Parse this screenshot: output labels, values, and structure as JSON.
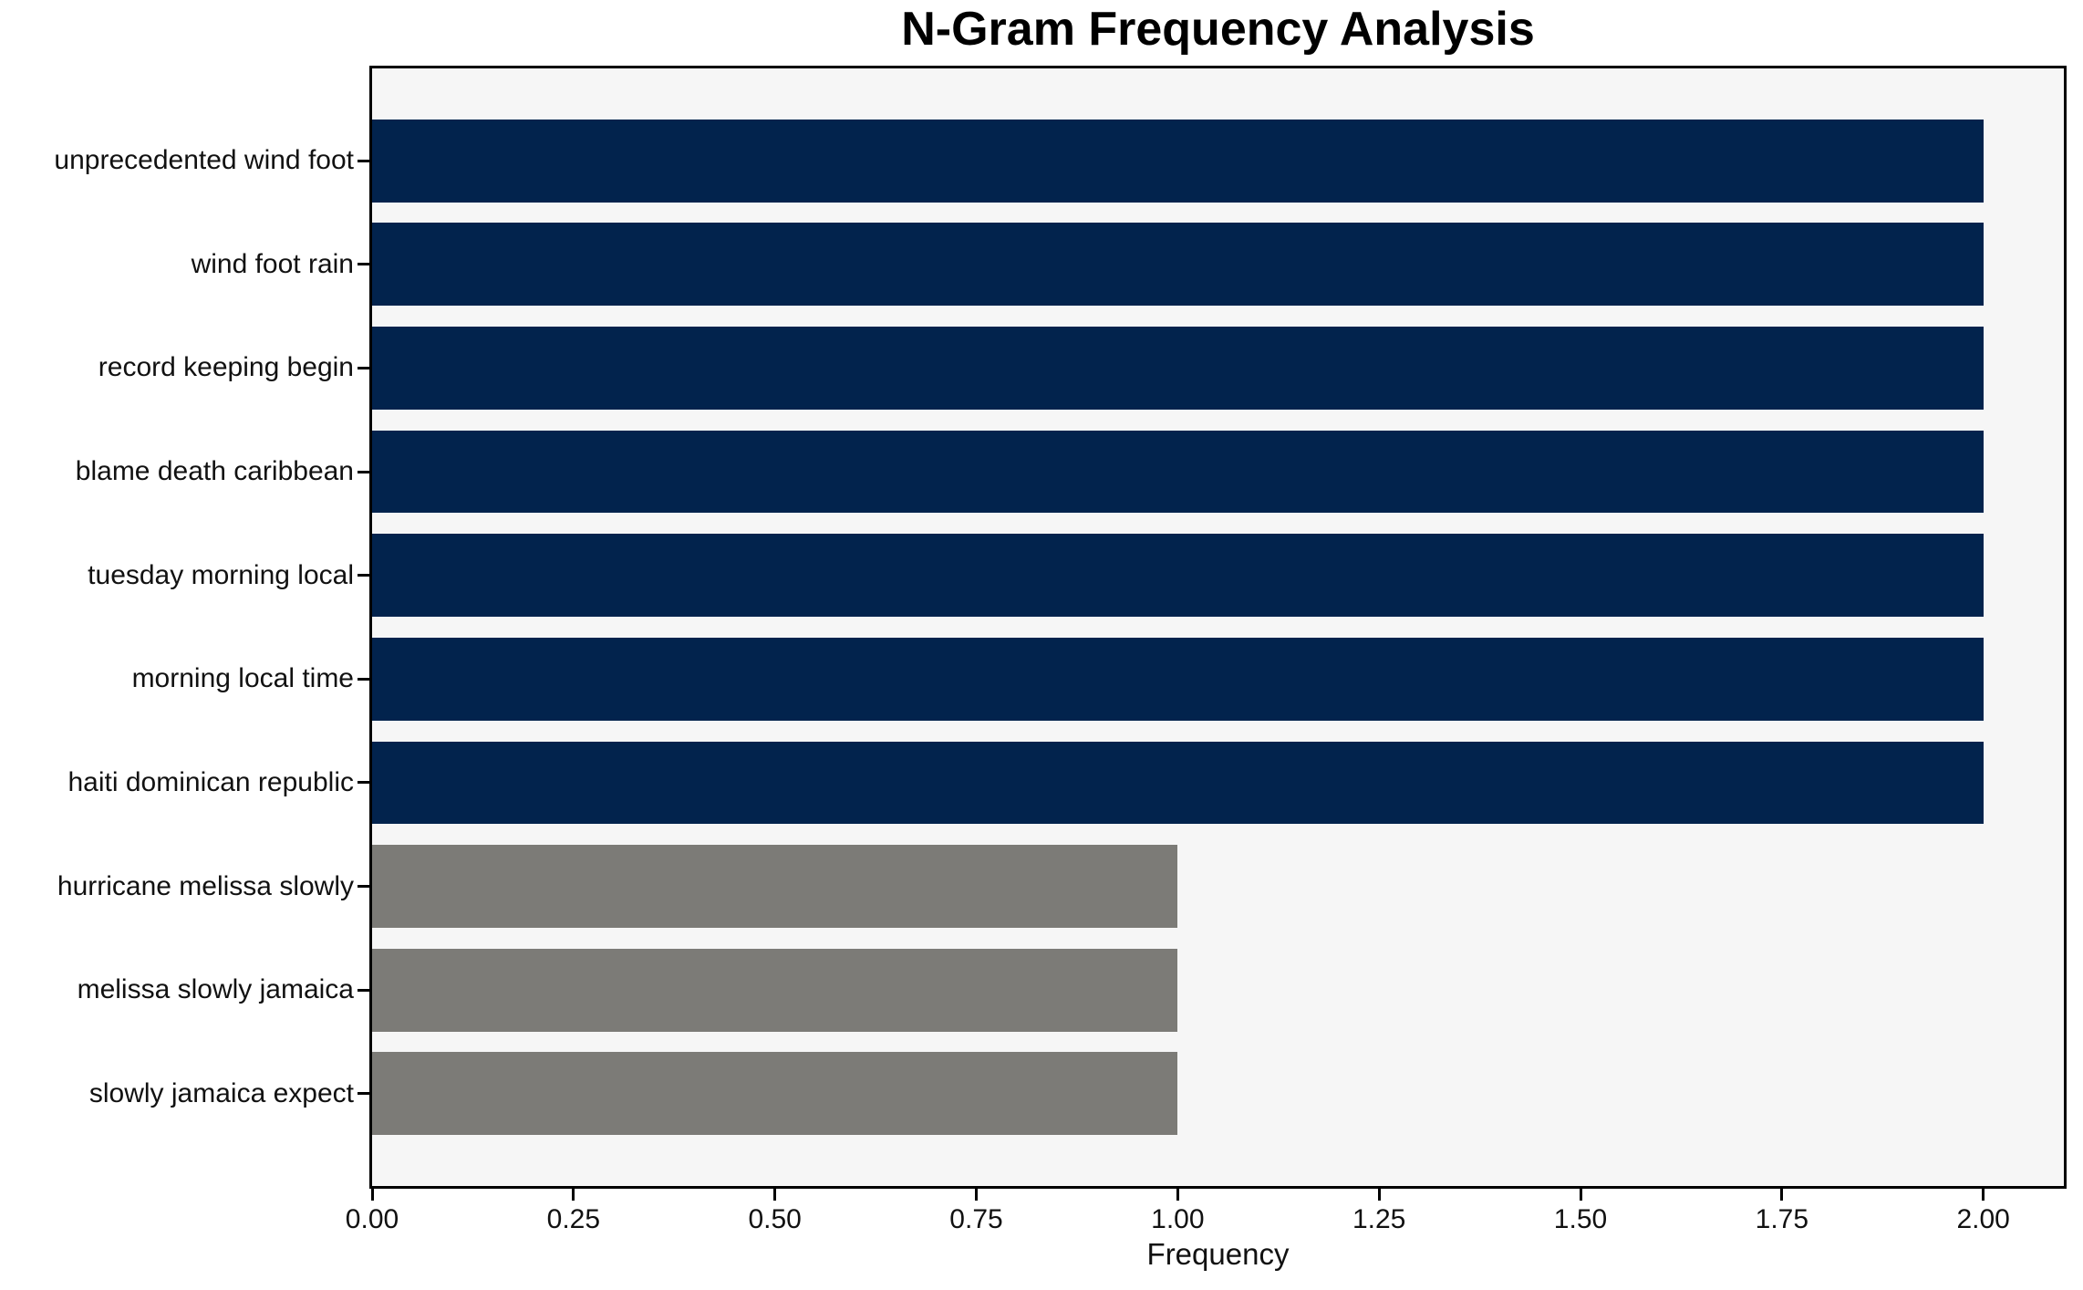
{
  "chart_data": {
    "type": "bar",
    "orientation": "horizontal",
    "title": "N-Gram Frequency Analysis",
    "xlabel": "Frequency",
    "ylabel": "",
    "categories": [
      "unprecedented wind foot",
      "wind foot rain",
      "record keeping begin",
      "blame death caribbean",
      "tuesday morning local",
      "morning local time",
      "haiti dominican republic",
      "hurricane melissa slowly",
      "melissa slowly jamaica",
      "slowly jamaica expect"
    ],
    "values": [
      2,
      2,
      2,
      2,
      2,
      2,
      2,
      1,
      1,
      1
    ],
    "bar_colors": [
      "#02234d",
      "#02234d",
      "#02234d",
      "#02234d",
      "#02234d",
      "#02234d",
      "#02234d",
      "#7c7b77",
      "#7c7b77",
      "#7c7b77"
    ],
    "xlim": [
      0,
      2.1
    ],
    "xticks": [
      0,
      0.25,
      0.5,
      0.75,
      1,
      1.25,
      1.5,
      1.75,
      2
    ],
    "xtick_labels": [
      "0.00",
      "0.25",
      "0.50",
      "0.75",
      "1.00",
      "1.25",
      "1.50",
      "1.75",
      "2.00"
    ],
    "grid": false,
    "legend": null,
    "plot_background": "#f6f6f6",
    "spine_color": "#000000",
    "color_navy": "#02234d",
    "color_gray": "#7c7b77"
  }
}
